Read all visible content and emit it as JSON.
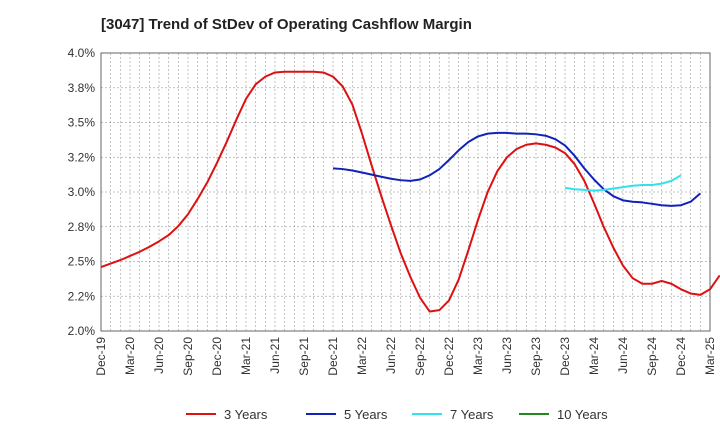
{
  "chart_data": {
    "type": "line",
    "title": "[3047]  Trend of StDev of Operating Cashflow Margin",
    "xlabel": "",
    "ylabel": "",
    "x_ticks": [
      "Dec-19",
      "Mar-20",
      "Jun-20",
      "Sep-20",
      "Dec-20",
      "Mar-21",
      "Jun-21",
      "Sep-21",
      "Dec-21",
      "Mar-22",
      "Jun-22",
      "Sep-22",
      "Dec-22",
      "Mar-23",
      "Jun-23",
      "Sep-23",
      "Dec-23",
      "Mar-24",
      "Jun-24",
      "Sep-24",
      "Dec-24",
      "Mar-25"
    ],
    "xlim": [
      "Dec-19",
      "Mar-25"
    ],
    "y_ticks": [
      "2.0%",
      "2.2%",
      "2.5%",
      "2.8%",
      "3.0%",
      "3.2%",
      "3.5%",
      "3.8%",
      "4.0%"
    ],
    "ylim": [
      2.0,
      4.0
    ],
    "grid": true,
    "legend_position": "bottom",
    "series": [
      {
        "name": "3 Years",
        "color": "#dd1111",
        "start": "Dec-19",
        "values": [
          2.46,
          2.485,
          2.51,
          2.54,
          2.57,
          2.605,
          2.645,
          2.69,
          2.755,
          2.84,
          2.95,
          3.07,
          3.21,
          3.36,
          3.52,
          3.67,
          3.775,
          3.83,
          3.86,
          3.865,
          3.865,
          3.865,
          3.865,
          3.86,
          3.83,
          3.76,
          3.63,
          3.42,
          3.19,
          2.97,
          2.76,
          2.56,
          2.39,
          2.24,
          2.14,
          2.15,
          2.22,
          2.37,
          2.58,
          2.8,
          3.0,
          3.15,
          3.25,
          3.31,
          3.34,
          3.35,
          3.34,
          3.32,
          3.28,
          3.2,
          3.08,
          2.92,
          2.75,
          2.6,
          2.47,
          2.38,
          2.34,
          2.34,
          2.36,
          2.34,
          2.3,
          2.27,
          2.26,
          2.3,
          2.4
        ]
      },
      {
        "name": "5 Years",
        "color": "#1122bb",
        "start": "Dec-21",
        "values": [
          3.17,
          3.165,
          3.155,
          3.14,
          3.125,
          3.11,
          3.095,
          3.085,
          3.08,
          3.09,
          3.12,
          3.165,
          3.23,
          3.3,
          3.36,
          3.4,
          3.42,
          3.425,
          3.425,
          3.42,
          3.42,
          3.415,
          3.405,
          3.38,
          3.335,
          3.26,
          3.17,
          3.09,
          3.02,
          2.97,
          2.94,
          2.93,
          2.925,
          2.915,
          2.905,
          2.9,
          2.905,
          2.93,
          2.99
        ]
      },
      {
        "name": "7 Years",
        "color": "#33e0ee",
        "start": "Dec-23",
        "values": [
          3.03,
          3.02,
          3.015,
          3.01,
          3.015,
          3.025,
          3.035,
          3.045,
          3.05,
          3.05,
          3.06,
          3.08,
          3.12
        ]
      },
      {
        "name": "10 Years",
        "color": "#228822",
        "start": "Dec-24",
        "values": []
      }
    ]
  }
}
